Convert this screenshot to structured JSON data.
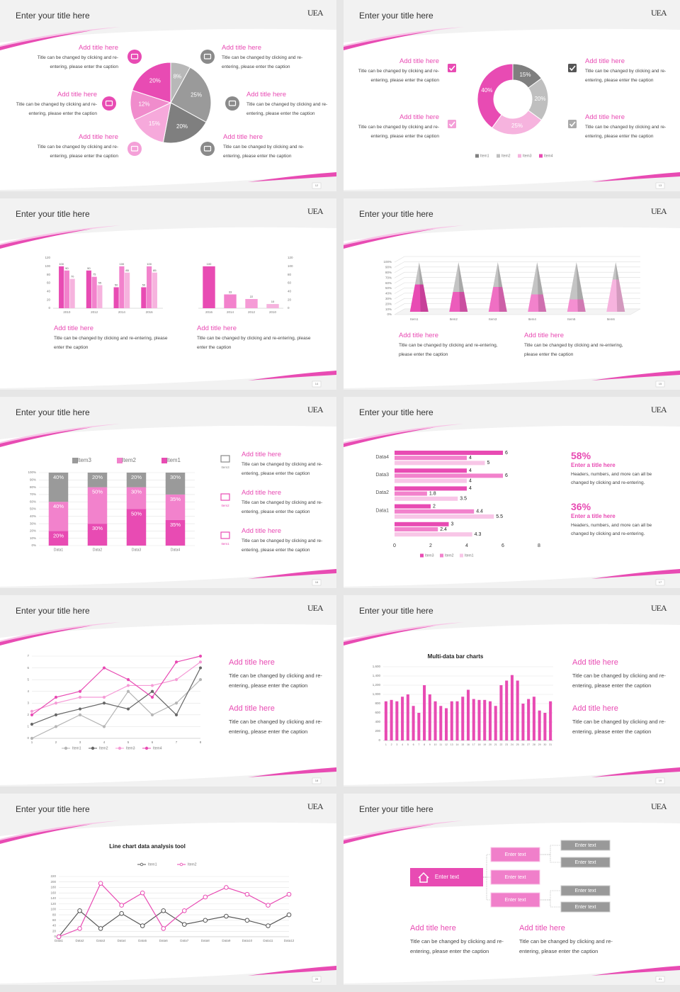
{
  "slides": [
    {
      "title": "Enter your title here",
      "logo": "UEA",
      "page": "12",
      "blocks": [
        {
          "heading": "Add title here",
          "caption": "Title can be changed by clicking and re-entering, please enter the caption"
        },
        {
          "heading": "Add title here",
          "caption": "Title can be changed by clicking and re-entering, please enter the caption"
        },
        {
          "heading": "Add title here",
          "caption": "Title can be changed by clicking and re-entering, please enter the caption"
        },
        {
          "heading": "Add title here",
          "caption": "Title can be changed by clicking and re-entering, please enter the caption"
        },
        {
          "heading": "Add title here",
          "caption": "Title can be changed by clicking and re-entering, please enter the caption"
        },
        {
          "heading": "Add title here",
          "caption": "Title can be changed by clicking and re-entering, please enter the caption"
        }
      ],
      "chart_data": {
        "type": "pie",
        "values": [
          8,
          25,
          20,
          15,
          12,
          20
        ],
        "value_labels": [
          "8%",
          "25%",
          "20%",
          "15%",
          "12%",
          "20%"
        ],
        "colors": [
          "#b8b8b8",
          "#9a9a9a",
          "#7f7f7f",
          "#f6a9db",
          "#f08ccc",
          "#e84bb3"
        ]
      }
    },
    {
      "title": "Enter your title here",
      "logo": "UEA",
      "page": "13",
      "blocks": [
        {
          "heading": "Add title here",
          "caption": "Title can be changed by clicking and re-entering, please enter the caption"
        },
        {
          "heading": "Add title here",
          "caption": "Title can be changed by clicking and re-entering, please enter the caption"
        },
        {
          "heading": "Add title here",
          "caption": "Title can be changed by clicking and re-entering, please enter the caption"
        },
        {
          "heading": "Add title here",
          "caption": "Title can be changed by clicking and re-entering, please enter the caption"
        }
      ],
      "chart_data": {
        "type": "donut",
        "categories": [
          "Item1",
          "Item2",
          "Item3",
          "Item4"
        ],
        "values": [
          15,
          20,
          25,
          40
        ],
        "value_labels": [
          "15%",
          "20%",
          "25%",
          "40%"
        ],
        "colors": [
          "#7f7f7f",
          "#bfbfbf",
          "#f6b3de",
          "#e84bb3"
        ],
        "legend": "bottom"
      }
    },
    {
      "title": "Enter your title here",
      "logo": "UEA",
      "page": "14",
      "blocks": [
        {
          "heading": "Add title here",
          "caption": "Title can be changed by clicking and re-entering, please enter the caption"
        },
        {
          "heading": "Add title here",
          "caption": "Title can be changed by clicking and re-entering, please enter the caption"
        }
      ],
      "chart_data": [
        {
          "type": "bar",
          "categories": [
            "2010",
            "2012",
            "2014",
            "2016"
          ],
          "series": [
            {
              "color": "#e84bb3",
              "values": [
                100,
                90,
                50,
                50
              ]
            },
            {
              "color": "#f282cc",
              "values": [
                90,
                75,
                100,
                100
              ]
            },
            {
              "color": "#f6b3de",
              "values": [
                70,
                55,
                85,
                85
              ]
            }
          ],
          "ylim": [
            0,
            120
          ],
          "yticks": [
            0,
            20,
            40,
            60,
            80,
            100,
            120
          ],
          "data_labels": true
        },
        {
          "type": "bar",
          "categories": [
            "2016",
            "2014",
            "2012",
            "2010"
          ],
          "values": [
            100,
            33,
            22,
            10
          ],
          "colors": [
            "#e84bb3",
            "#f282cc",
            "#f59bd6",
            "#f6b3de"
          ],
          "ylim": [
            0,
            120
          ],
          "yticks": [
            0,
            20,
            40,
            60,
            80,
            100,
            120
          ],
          "yaxis_position": "right",
          "data_labels": true
        }
      ]
    },
    {
      "title": "Enter your title here",
      "logo": "UEA",
      "page": "15",
      "blocks": [
        {
          "heading": "Add title here",
          "caption": "Title can be changed by clicking and re-entering, please enter the caption"
        },
        {
          "heading": "Add title here",
          "caption": "Title can be changed by clicking and re-entering, please enter the caption"
        }
      ],
      "chart_data": {
        "type": "pyramid",
        "categories": [
          "Item1",
          "Item2",
          "Item3",
          "Item4",
          "Item5",
          "Item6"
        ],
        "series": [
          {
            "colors": [
              "#e84bb3",
              "#ec5cbb",
              "#ef6fc3",
              "#f282cc",
              "#f48fd1",
              "#f6b3de"
            ],
            "values": [
              55,
              40,
              50,
              35,
              25,
              65
            ]
          },
          {
            "color": "#c4c4c4",
            "values": [
              45,
              60,
              50,
              65,
              75,
              35
            ]
          }
        ],
        "ylim": [
          0,
          100
        ],
        "yticks": [
          {
            "value": 0,
            "label": "0%"
          },
          {
            "value": 10,
            "label": "10%"
          },
          {
            "value": 20,
            "label": "20%"
          },
          {
            "value": 30,
            "label": "30%"
          },
          {
            "value": 40,
            "label": "40%"
          },
          {
            "value": 50,
            "label": "50%"
          },
          {
            "value": 60,
            "label": "60%"
          },
          {
            "value": 70,
            "label": "70%"
          },
          {
            "value": 80,
            "label": "80%"
          },
          {
            "value": 90,
            "label": "90%"
          },
          {
            "value": 100,
            "label": "100%"
          }
        ],
        "grid": true
      }
    },
    {
      "title": "Enter your title here",
      "logo": "UEA",
      "page": "16",
      "blocks": [
        {
          "icon_label": "Item3",
          "heading": "Add title here",
          "caption": "Title can be changed by clicking and re-entering, please enter the caption"
        },
        {
          "icon_label": "Item2",
          "heading": "Add title here",
          "caption": "Title can be changed by clicking and re-entering, please enter the caption"
        },
        {
          "icon_label": "Item1",
          "heading": "Add title here",
          "caption": "Title can be changed by clicking and re-entering, please enter the caption"
        }
      ],
      "chart_data": {
        "type": "stacked_bar",
        "categories": [
          "Data1",
          "Data2",
          "Data3",
          "Data4"
        ],
        "series": [
          {
            "name": "Item3",
            "color": "#9a9a9a",
            "values": [
              40,
              20,
              20,
              30
            ],
            "value_labels": [
              "40%",
              "20%",
              "20%",
              "30%"
            ]
          },
          {
            "name": "Item2",
            "color": "#f282cc",
            "values": [
              40,
              50,
              30,
              35
            ],
            "value_labels": [
              "40%",
              "50%",
              "30%",
              "35%"
            ]
          },
          {
            "name": "Item1",
            "color": "#e84bb3",
            "values": [
              20,
              30,
              50,
              35
            ],
            "value_labels": [
              "20%",
              "30%",
              "50%",
              "35%"
            ]
          }
        ],
        "ylim": [
          0,
          100
        ],
        "yticks": [
          {
            "value": 0,
            "label": "0%"
          },
          {
            "value": 10,
            "label": "10%"
          },
          {
            "value": 20,
            "label": "20%"
          },
          {
            "value": 30,
            "label": "30%"
          },
          {
            "value": 40,
            "label": "40%"
          },
          {
            "value": 50,
            "label": "50%"
          },
          {
            "value": 60,
            "label": "60%"
          },
          {
            "value": 70,
            "label": "70%"
          },
          {
            "value": 80,
            "label": "80%"
          },
          {
            "value": 90,
            "label": "90%"
          },
          {
            "value": 100,
            "label": "100%"
          }
        ],
        "grid": true,
        "legend": "top"
      }
    },
    {
      "title": "Enter your title here",
      "logo": "UEA",
      "page": "17",
      "stats": [
        {
          "value": "58%",
          "heading": "Enter a title here",
          "caption": "Headers, numbers, and more can all be changed by clicking and re-entering."
        },
        {
          "value": "36%",
          "heading": "Enter a title here",
          "caption": "Headers, numbers, and more can all be changed by clicking and re-entering."
        }
      ],
      "chart_data": {
        "type": "hbar",
        "categories": [
          "Data4",
          "Data3",
          "Data2",
          "Data1",
          null
        ],
        "series": [
          {
            "name": "Item3",
            "color": "#e84bb3",
            "values": [
              6,
              4,
              4,
              2,
              3
            ]
          },
          {
            "name": "Item2",
            "color": "#f282cc",
            "values": [
              4,
              6,
              1.8,
              4.4,
              2.4
            ]
          },
          {
            "name": "Item1",
            "color": "#f8c6e7",
            "values": [
              5,
              4,
              3.5,
              5.5,
              4.3
            ]
          }
        ],
        "xlim": [
          0,
          8
        ],
        "xticks": [
          0,
          2,
          4,
          6,
          8
        ],
        "data_labels": true,
        "legend": "bottom"
      }
    },
    {
      "title": "Enter your title here",
      "logo": "UEA",
      "page": "18",
      "blocks": [
        {
          "heading": "Add title here",
          "caption": "Title can be changed by clicking and re-entering, please enter the caption"
        },
        {
          "heading": "Add title here",
          "caption": "Title can be changed by clicking and re-entering, please enter the caption"
        }
      ],
      "chart_data": {
        "type": "line",
        "x": [
          1,
          2,
          3,
          4,
          5,
          6,
          7,
          8
        ],
        "xlim": [
          1,
          8
        ],
        "xticks": [
          1,
          2,
          3,
          4,
          5,
          6,
          7,
          8
        ],
        "ylim": [
          0,
          7
        ],
        "yticks": [
          0,
          1,
          2,
          3,
          4,
          5,
          6,
          7
        ],
        "grid": true,
        "markers": "filled",
        "legend": "bottom",
        "series": [
          {
            "name": "Item1",
            "color": "#b5b5b5",
            "values": [
              0,
              1,
              2,
              1,
              4,
              2,
              3,
              5
            ]
          },
          {
            "name": "Item2",
            "color": "#666666",
            "values": [
              1.2,
              2,
              2.5,
              3,
              2.5,
              4,
              2,
              6
            ]
          },
          {
            "name": "Item3",
            "color": "#f59bd6",
            "values": [
              2.3,
              3,
              3.5,
              3.5,
              4.5,
              4.5,
              5,
              6.5
            ]
          },
          {
            "name": "Item4",
            "color": "#e84bb3",
            "values": [
              2,
              3.5,
              4,
              6,
              5,
              3.5,
              6.5,
              7
            ]
          }
        ]
      }
    },
    {
      "title": "Enter your title here",
      "logo": "UEA",
      "page": "19",
      "blocks": [
        {
          "heading": "Add title here",
          "caption": "Title can be changed by clicking and re-entering, please enter the caption"
        },
        {
          "heading": "Add title here",
          "caption": "Title can be changed by clicking and re-entering, please enter the caption"
        }
      ],
      "chart_data": {
        "type": "bar",
        "title": "Multi-data bar charts",
        "categories": [
          "1",
          "2",
          "3",
          "4",
          "5",
          "6",
          "7",
          "8",
          "9",
          "10",
          "11",
          "12",
          "13",
          "14",
          "15",
          "16",
          "17",
          "18",
          "19",
          "20",
          "21",
          "22",
          "23",
          "24",
          "25",
          "26",
          "27",
          "28",
          "29",
          "30",
          "31"
        ],
        "values": [
          850,
          880,
          850,
          950,
          1000,
          750,
          600,
          1200,
          1000,
          850,
          750,
          700,
          850,
          850,
          950,
          1100,
          900,
          880,
          880,
          850,
          750,
          1200,
          1300,
          1420,
          1300,
          800,
          900,
          950,
          650,
          600,
          850
        ],
        "color": "#e84bb3",
        "ylim": [
          0,
          1600
        ],
        "yticks": [
          0,
          200,
          400,
          600,
          800,
          {
            "value": 1000,
            "label": "1,000"
          },
          {
            "value": 1200,
            "label": "1,200"
          },
          {
            "value": 1400,
            "label": "1,400"
          },
          {
            "value": 1600,
            "label": "1,600"
          }
        ],
        "grid": true
      }
    },
    {
      "title": "Enter your title here",
      "logo": "UEA",
      "page": "20",
      "chart_data": {
        "type": "line",
        "title": "Line chart data analysis tool",
        "categories": [
          "Data1",
          "Data2",
          "Data3",
          "Data4",
          "Data5",
          "Data6",
          "Data7",
          "Data8",
          "Data9",
          "Data10",
          "Data11",
          "Data12"
        ],
        "ylim": [
          0,
          220
        ],
        "yticks": [
          0,
          20,
          40,
          60,
          80,
          100,
          120,
          140,
          160,
          180,
          200,
          220
        ],
        "grid": true,
        "markers": "hollow",
        "legend": "top",
        "series": [
          {
            "name": "Item1",
            "color": "#555555",
            "values": [
              0,
              95,
              30,
              85,
              40,
              95,
              45,
              60,
              75,
              60,
              40,
              80
            ]
          },
          {
            "name": "Item2",
            "color": "#e84bb3",
            "values": [
              0,
              30,
              195,
              115,
              160,
              30,
              95,
              145,
              180,
              155,
              115,
              155
            ]
          }
        ]
      }
    },
    {
      "title": "Enter your title here",
      "logo": "UEA",
      "page": "21",
      "diagram": {
        "root": "Enter text",
        "branches": [
          "Enter text",
          "Enter text",
          "Enter text"
        ],
        "leaves": [
          "Enter text",
          "Enter text",
          "Enter text",
          "Enter text"
        ]
      },
      "blocks": [
        {
          "heading": "Add title here",
          "caption": "Title can be changed by clicking and re-entering, please enter the caption"
        },
        {
          "heading": "Add title here",
          "caption": "Title can be changed by clicking and re-entering, please enter the caption"
        }
      ]
    }
  ]
}
